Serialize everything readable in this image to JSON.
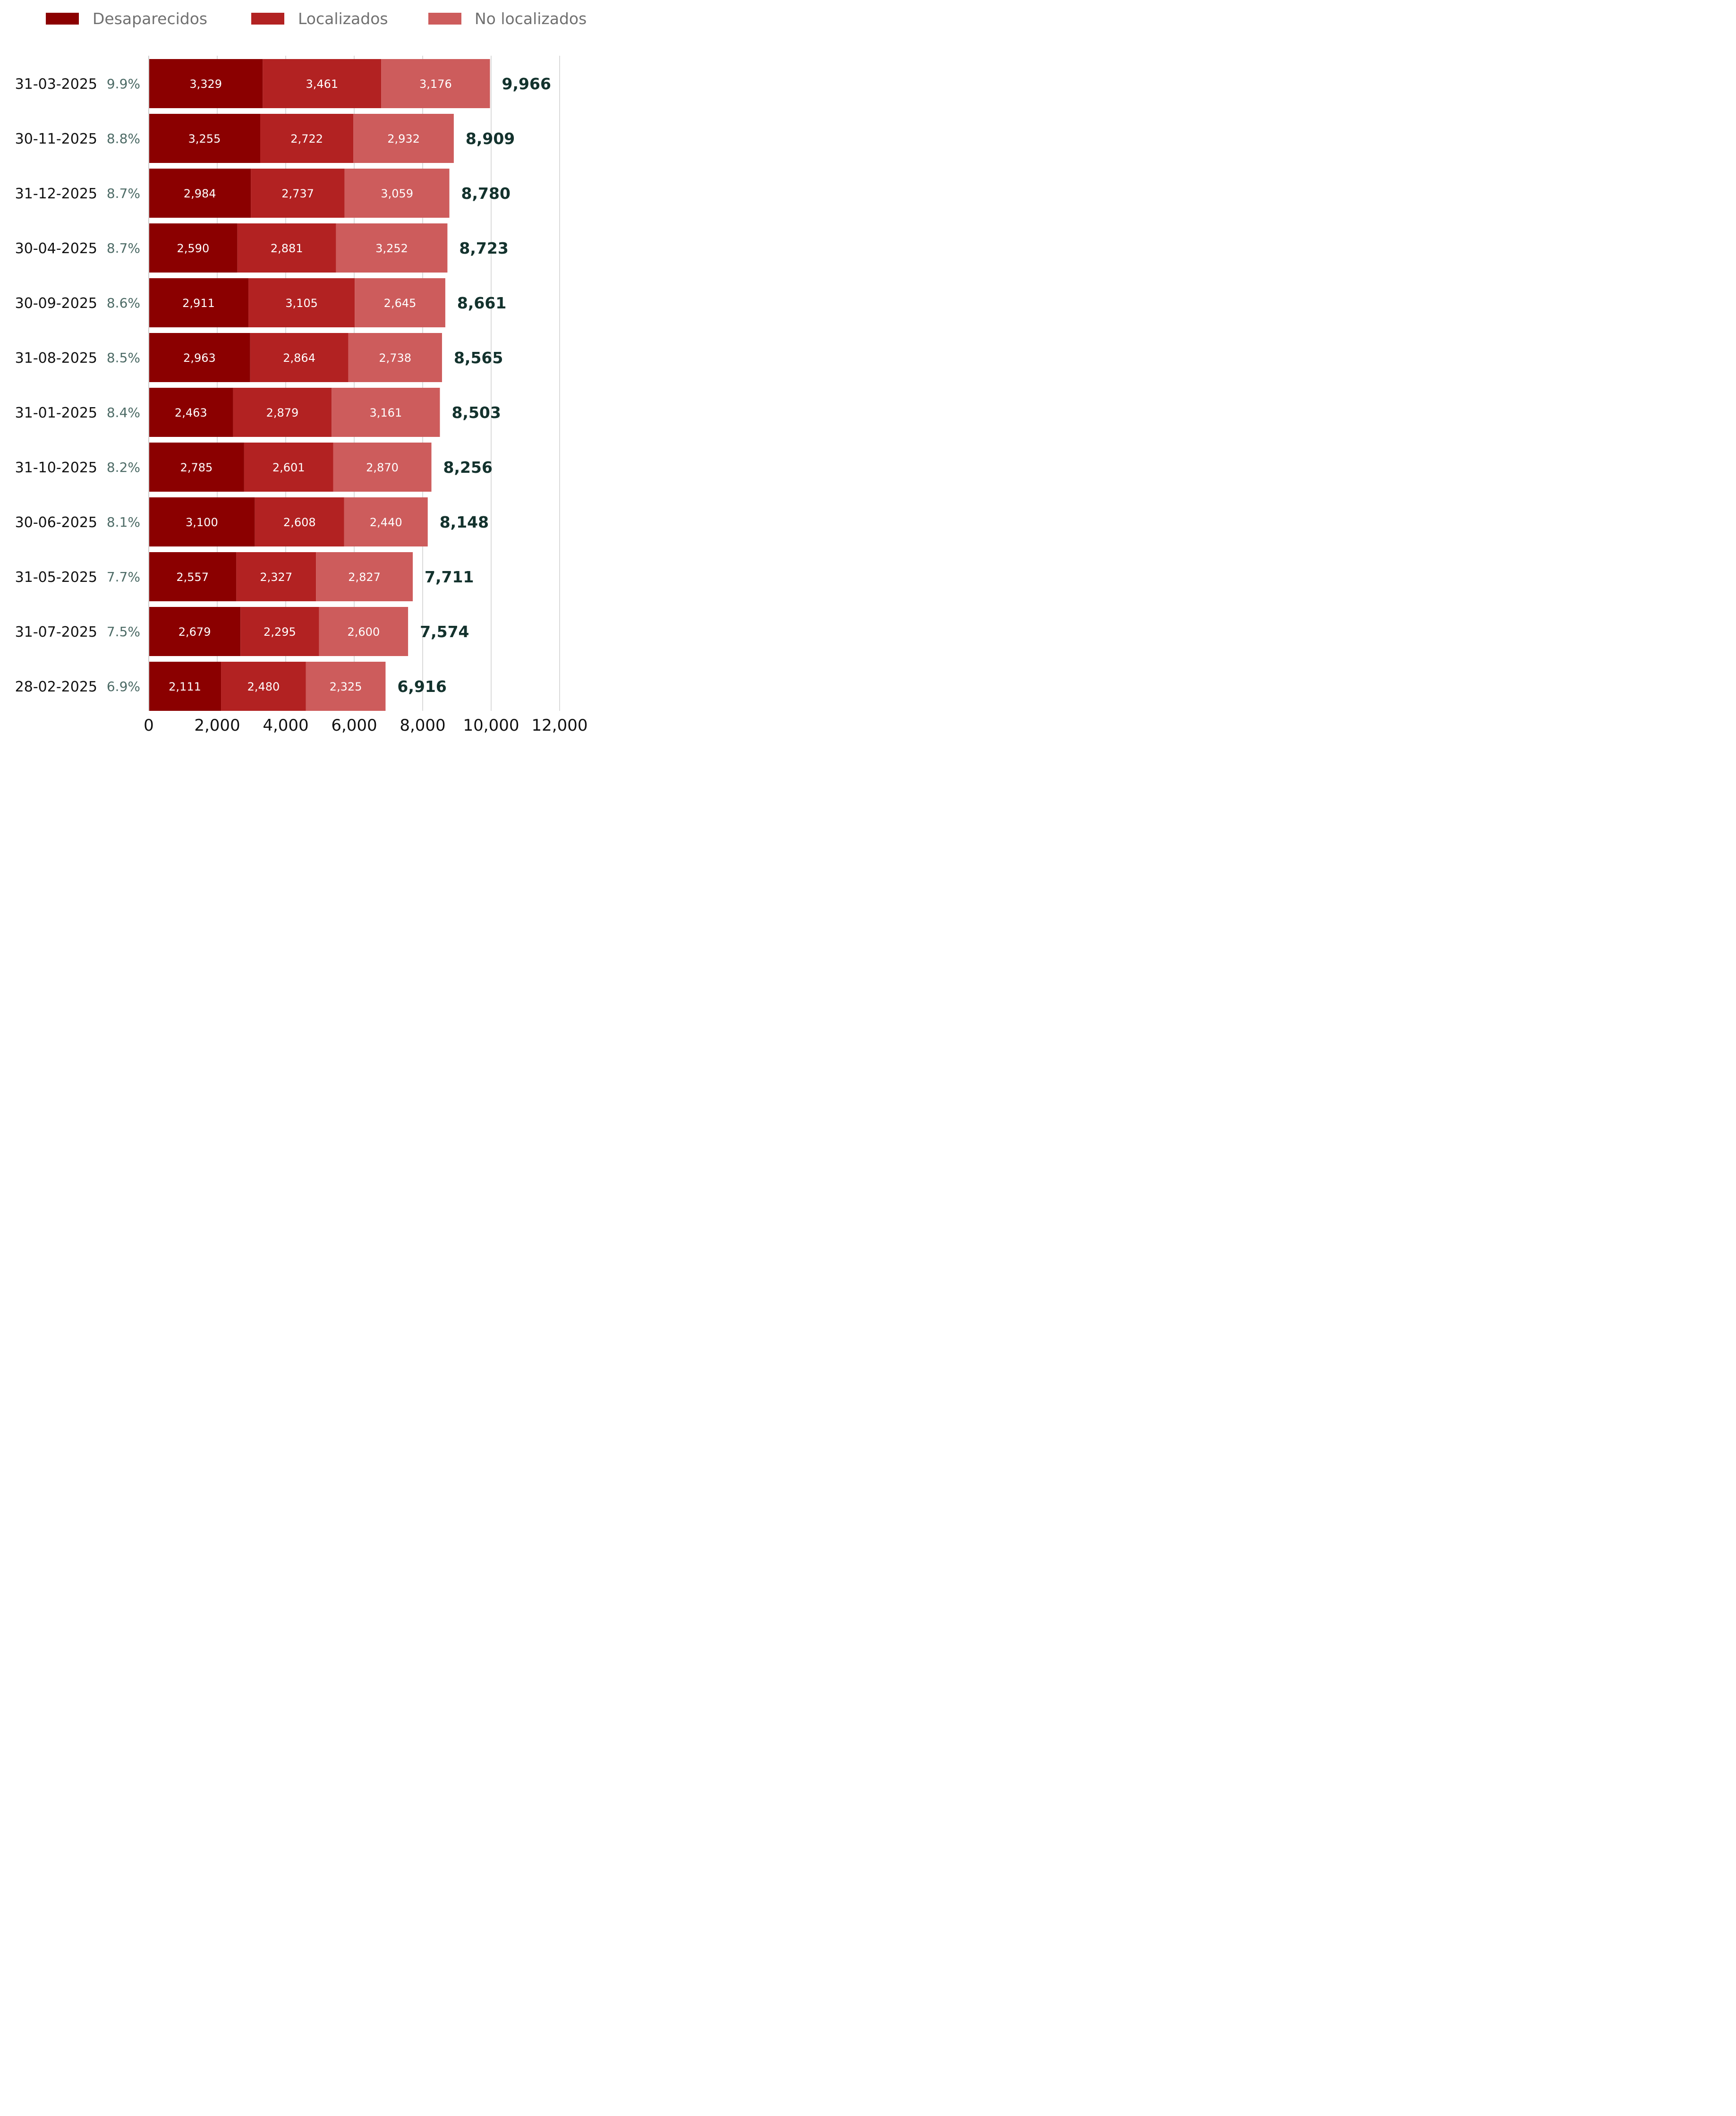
{
  "chart_data": {
    "type": "bar",
    "orientation": "horizontal",
    "stacked": true,
    "categories": [
      "31-03-2025",
      "30-11-2025",
      "31-12-2025",
      "30-04-2025",
      "30-09-2025",
      "31-08-2025",
      "31-01-2025",
      "31-10-2025",
      "30-06-2025",
      "31-05-2025",
      "31-07-2025",
      "28-02-2025"
    ],
    "percentages": [
      "9.9%",
      "8.8%",
      "8.7%",
      "8.7%",
      "8.6%",
      "8.5%",
      "8.4%",
      "8.2%",
      "8.1%",
      "7.7%",
      "7.5%",
      "6.9%"
    ],
    "series": [
      {
        "name": "Desaparecidos",
        "color": "#8b0000",
        "values": [
          3329,
          3255,
          2984,
          2590,
          2911,
          2963,
          2463,
          2785,
          3100,
          2557,
          2679,
          2111
        ],
        "labels": [
          "3,329",
          "3,255",
          "2,984",
          "2,590",
          "2,911",
          "2,963",
          "2,463",
          "2,785",
          "3,100",
          "2,557",
          "2,679",
          "2,111"
        ]
      },
      {
        "name": "Localizados",
        "color": "#b22222",
        "values": [
          3461,
          2722,
          2737,
          2881,
          3105,
          2864,
          2879,
          2601,
          2608,
          2327,
          2295,
          2480
        ],
        "labels": [
          "3,461",
          "2,722",
          "2,737",
          "2,881",
          "3,105",
          "2,864",
          "2,879",
          "2,601",
          "2,608",
          "2,327",
          "2,295",
          "2,480"
        ]
      },
      {
        "name": "No localizados",
        "color": "#cd5c5c",
        "values": [
          3176,
          2932,
          3059,
          3252,
          2645,
          2738,
          3161,
          2870,
          2440,
          2827,
          2600,
          2325
        ],
        "labels": [
          "3,176",
          "2,932",
          "3,059",
          "3,252",
          "2,645",
          "2,738",
          "3,161",
          "2,870",
          "2,440",
          "2,827",
          "2,600",
          "2,325"
        ]
      }
    ],
    "totals": [
      9966,
      8909,
      8780,
      8723,
      8661,
      8565,
      8503,
      8256,
      8148,
      7711,
      7574,
      6916
    ],
    "total_labels": [
      "9,966",
      "8,909",
      "8,780",
      "8,723",
      "8,661",
      "8,565",
      "8,503",
      "8,256",
      "8,148",
      "7,711",
      "7,574",
      "6,916"
    ],
    "xlim": [
      0,
      12000
    ],
    "xticks": [
      0,
      2000,
      4000,
      6000,
      8000,
      10000,
      12000
    ],
    "xtick_labels": [
      "0",
      "2,000",
      "4,000",
      "6,000",
      "8,000",
      "10,000",
      "12,000"
    ],
    "grid": "vertical",
    "legend_position": "top"
  }
}
